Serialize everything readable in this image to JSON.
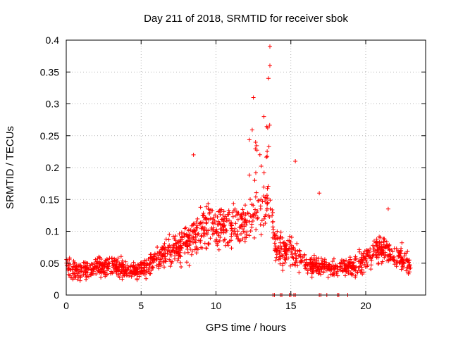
{
  "chart_data": {
    "type": "scatter",
    "title": "Day 211 of 2018, SRMTID for receiver sbok",
    "xlabel": "GPS time / hours",
    "ylabel": "SRMTID / TECUs",
    "xlim": [
      0,
      24
    ],
    "ylim": [
      0,
      0.4
    ],
    "xticks": [
      0,
      5,
      10,
      15,
      20
    ],
    "xtick_labels": [
      "0",
      "5",
      "10",
      "15",
      "20"
    ],
    "yticks": [
      0,
      0.05,
      0.1,
      0.15,
      0.2,
      0.25,
      0.3,
      0.35,
      0.4
    ],
    "ytick_labels": [
      "0",
      "0.05",
      "0.1",
      "0.15",
      "0.2",
      "0.25",
      "0.3",
      "0.35",
      "0.4"
    ],
    "grid": true,
    "marker": "+",
    "color": "#ff0000",
    "series": [
      {
        "name": "SRMTID",
        "x_range": [
          0,
          23
        ],
        "median_profile": [
          [
            0,
            0.042
          ],
          [
            1,
            0.038
          ],
          [
            2,
            0.044
          ],
          [
            3,
            0.047
          ],
          [
            4,
            0.04
          ],
          [
            5,
            0.038
          ],
          [
            6,
            0.058
          ],
          [
            7,
            0.07
          ],
          [
            8,
            0.08
          ],
          [
            8.5,
            0.095
          ],
          [
            9,
            0.105
          ],
          [
            10,
            0.108
          ],
          [
            11,
            0.105
          ],
          [
            12,
            0.11
          ],
          [
            13,
            0.135
          ],
          [
            13.5,
            0.15
          ],
          [
            14,
            0.075
          ],
          [
            15,
            0.07
          ],
          [
            16,
            0.045
          ],
          [
            17,
            0.045
          ],
          [
            18,
            0.044
          ],
          [
            19,
            0.042
          ],
          [
            20,
            0.058
          ],
          [
            21,
            0.075
          ],
          [
            22,
            0.06
          ],
          [
            23,
            0.05
          ]
        ],
        "peak_points": [
          {
            "x": 13.6,
            "y": 0.39
          },
          {
            "x": 13.6,
            "y": 0.36
          },
          {
            "x": 13.5,
            "y": 0.34
          },
          {
            "x": 12.5,
            "y": 0.31
          },
          {
            "x": 13.2,
            "y": 0.28
          },
          {
            "x": 8.5,
            "y": 0.22
          },
          {
            "x": 15.3,
            "y": 0.21
          },
          {
            "x": 16.9,
            "y": 0.16
          },
          {
            "x": 21.5,
            "y": 0.135
          }
        ],
        "zero_points_x": [
          13.8,
          13.9,
          14.3,
          14.4,
          14.9,
          15.0,
          15.2,
          15.3,
          16.9,
          17.0,
          17.4,
          18.1,
          18.2,
          18.8
        ]
      }
    ]
  }
}
